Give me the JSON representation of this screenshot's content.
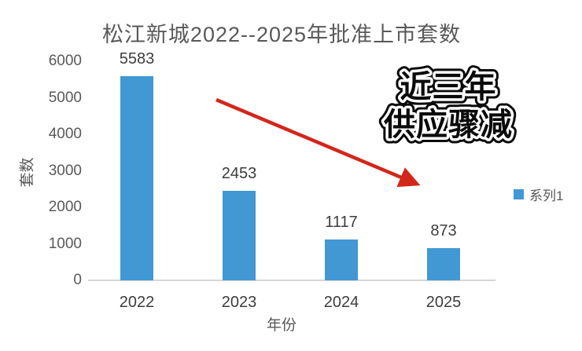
{
  "chart_data": {
    "type": "bar",
    "title": "松江新城2022--2025年批准上市套数",
    "categories": [
      "2022",
      "2023",
      "2024",
      "2025"
    ],
    "values": [
      5583,
      2453,
      1117,
      873
    ],
    "xlabel": "年份",
    "ylabel": "套数",
    "ylim": [
      0,
      6000
    ],
    "yticks": [
      0,
      1000,
      2000,
      3000,
      4000,
      5000,
      6000
    ],
    "grid": false,
    "bar_color": "#4198D3",
    "legend": {
      "position": "right",
      "entries": [
        {
          "label": "系列1",
          "color": "#4198D3"
        }
      ]
    },
    "annotation": {
      "lines": [
        "近三年",
        "供应骤减"
      ],
      "fill_color": "#0a0a0a",
      "inner_outline_color": "#ffffff",
      "outer_outline_color": "#0a0a0a"
    },
    "arrow": {
      "color": "#D3261B",
      "from": [
        275,
        127
      ],
      "to": [
        527,
        233
      ]
    }
  },
  "colors": {
    "title_text": "#595959",
    "axis_text": "#595959",
    "value_text": "#3d3d3d",
    "axis_line": "#d6d6d6",
    "background": "#ffffff"
  }
}
